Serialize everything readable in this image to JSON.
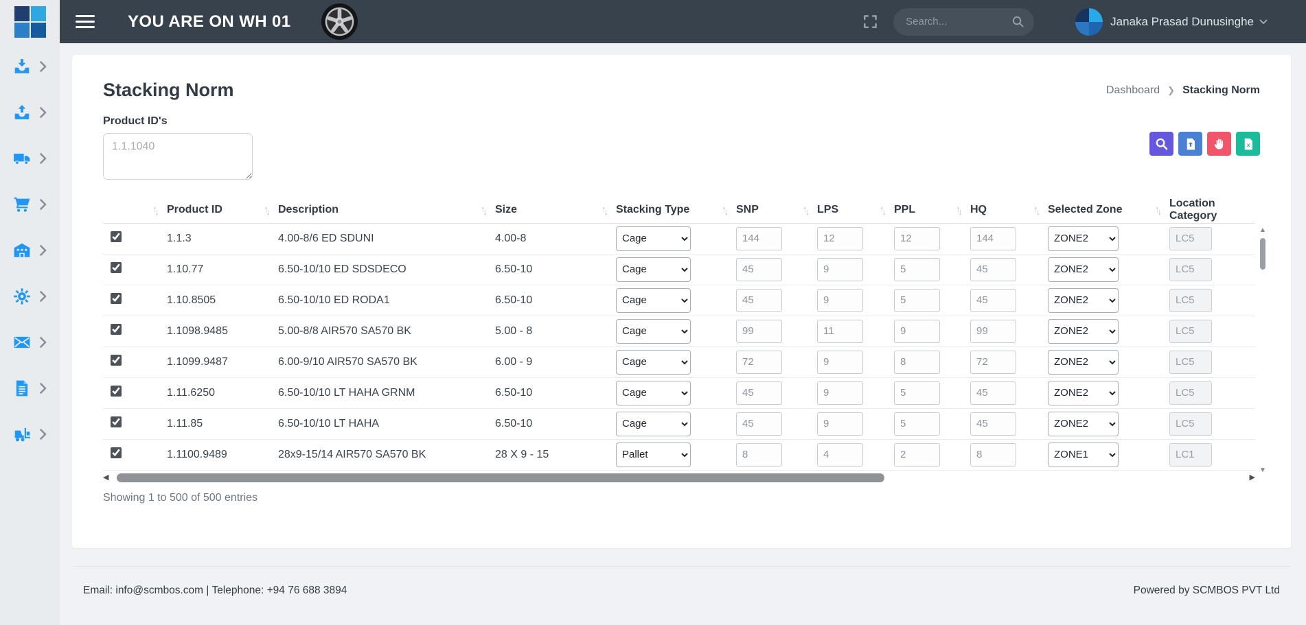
{
  "topbar": {
    "warehouse_banner": "YOU ARE ON WH 01",
    "search_placeholder": "Search...",
    "user_name": "Janaka Prasad Dunusinghe",
    "icons": [
      "app-logo",
      "menu-icon",
      "wheel-logo",
      "fullscreen-icon",
      "search-icon",
      "avatar",
      "chevron-down-icon"
    ]
  },
  "sidebar": {
    "items": [
      {
        "icon": "inbound-tray-icon"
      },
      {
        "icon": "outbound-tray-icon"
      },
      {
        "icon": "truck-icon"
      },
      {
        "icon": "cart-icon"
      },
      {
        "icon": "warehouse-icon"
      },
      {
        "icon": "settings-gear-icon"
      },
      {
        "icon": "mail-icon"
      },
      {
        "icon": "document-icon"
      },
      {
        "icon": "forklift-icon"
      }
    ]
  },
  "breadcrumb": {
    "items": [
      "Dashboard",
      "Stacking Norm"
    ]
  },
  "page": {
    "title": "Stacking Norm",
    "product_ids_label": "Product ID's",
    "product_ids_placeholder": "1.1.1040",
    "showing_text": "Showing 1 to 500 of 500 entries"
  },
  "toolbar": {
    "buttons": [
      {
        "name": "search",
        "icon": "search-icon",
        "color": "#6658dd"
      },
      {
        "name": "export-file",
        "icon": "file-upload-icon",
        "color": "#4a81d4"
      },
      {
        "name": "hold",
        "icon": "hand-icon",
        "color": "#f1556c"
      },
      {
        "name": "export-excel",
        "icon": "excel-file-icon",
        "color": "#1abc9c"
      }
    ]
  },
  "table": {
    "columns": [
      {
        "label": "",
        "sortable": true
      },
      {
        "label": "Product ID",
        "sortable": true
      },
      {
        "label": "Description",
        "sortable": true
      },
      {
        "label": "Size",
        "sortable": true
      },
      {
        "label": "Stacking Type",
        "sortable": true
      },
      {
        "label": "SNP",
        "sortable": true
      },
      {
        "label": "LPS",
        "sortable": true
      },
      {
        "label": "PPL",
        "sortable": true
      },
      {
        "label": "HQ",
        "sortable": true
      },
      {
        "label": "Selected Zone",
        "sortable": true
      },
      {
        "label": "Location Category",
        "sortable": false
      }
    ],
    "rows": [
      {
        "checked": true,
        "product_id": "1.1.3",
        "description": "4.00-8/6 ED SDUNI",
        "size": "4.00-8",
        "stacking_type": "Cage",
        "snp": "144",
        "lps": "12",
        "ppl": "12",
        "hq": "144",
        "zone": "ZONE2",
        "location_category": "LC5"
      },
      {
        "checked": true,
        "product_id": "1.10.77",
        "description": "6.50-10/10 ED SDSDECO",
        "size": "6.50-10",
        "stacking_type": "Cage",
        "snp": "45",
        "lps": "9",
        "ppl": "5",
        "hq": "45",
        "zone": "ZONE2",
        "location_category": "LC5"
      },
      {
        "checked": true,
        "product_id": "1.10.8505",
        "description": "6.50-10/10 ED RODA1",
        "size": "6.50-10",
        "stacking_type": "Cage",
        "snp": "45",
        "lps": "9",
        "ppl": "5",
        "hq": "45",
        "zone": "ZONE2",
        "location_category": "LC5"
      },
      {
        "checked": true,
        "product_id": "1.1098.9485",
        "description": "5.00-8/8 AIR570 SA570 BK",
        "size": "5.00 - 8",
        "stacking_type": "Cage",
        "snp": "99",
        "lps": "11",
        "ppl": "9",
        "hq": "99",
        "zone": "ZONE2",
        "location_category": "LC5"
      },
      {
        "checked": true,
        "product_id": "1.1099.9487",
        "description": "6.00-9/10 AIR570 SA570 BK",
        "size": "6.00 - 9",
        "stacking_type": "Cage",
        "snp": "72",
        "lps": "9",
        "ppl": "8",
        "hq": "72",
        "zone": "ZONE2",
        "location_category": "LC5"
      },
      {
        "checked": true,
        "product_id": "1.11.6250",
        "description": "6.50-10/10 LT HAHA GRNM",
        "size": "6.50-10",
        "stacking_type": "Cage",
        "snp": "45",
        "lps": "9",
        "ppl": "5",
        "hq": "45",
        "zone": "ZONE2",
        "location_category": "LC5"
      },
      {
        "checked": true,
        "product_id": "1.11.85",
        "description": "6.50-10/10 LT HAHA",
        "size": "6.50-10",
        "stacking_type": "Cage",
        "snp": "45",
        "lps": "9",
        "ppl": "5",
        "hq": "45",
        "zone": "ZONE2",
        "location_category": "LC5"
      },
      {
        "checked": true,
        "product_id": "1.1100.9489",
        "description": "28x9-15/14 AIR570 SA570 BK",
        "size": "28 X 9 - 15",
        "stacking_type": "Pallet",
        "snp": "8",
        "lps": "4",
        "ppl": "2",
        "hq": "8",
        "zone": "ZONE1",
        "location_category": "LC1"
      }
    ]
  },
  "footer": {
    "contact": "Email: info@scmbos.com | Telephone: +94 76 688 3894",
    "powered_by": "Powered by SCMBOS PVT Ltd"
  },
  "colors": {
    "topbar": "#37424c",
    "sidebar_icon": "#2196f3",
    "accent_purple": "#6658dd",
    "accent_blue": "#4a81d4",
    "accent_red": "#f1556c",
    "accent_green": "#1abc9c"
  }
}
